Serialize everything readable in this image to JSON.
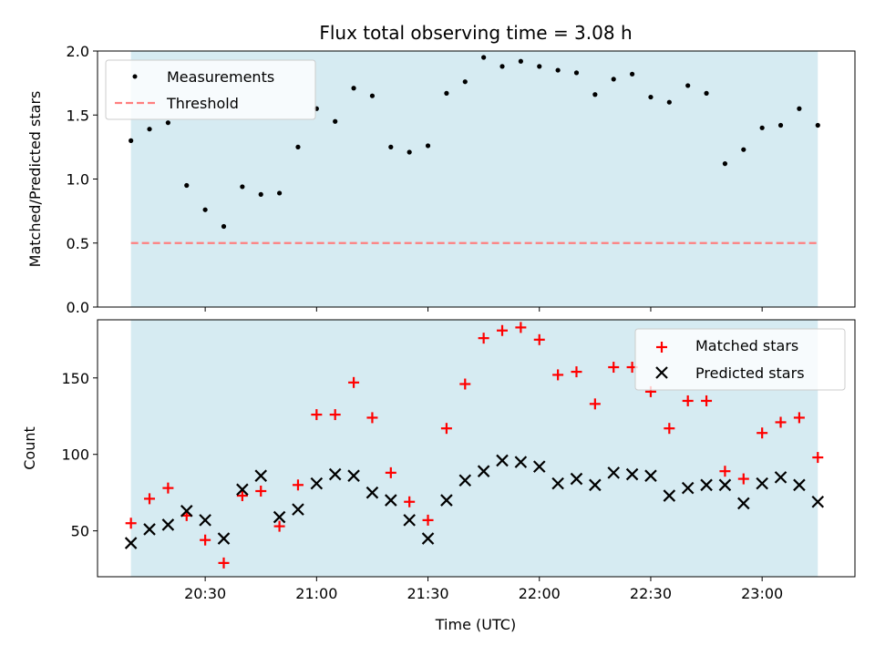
{
  "chart_data": {
    "title": "Flux total observing time = 3.08 h",
    "xlabel": "Time (UTC)",
    "x_tick_labels": [
      "20:30",
      "21:00",
      "21:30",
      "22:00",
      "22:30",
      "23:00"
    ],
    "x_tick_values": [
      "20:30",
      "21:00",
      "21:30",
      "22:00",
      "22:30",
      "23:00"
    ],
    "x_range": [
      "20:01",
      "23:25"
    ],
    "shaded_span": [
      "20:10",
      "23:15"
    ],
    "colors": {
      "shade": "#add8e6",
      "measure": "#000000",
      "threshold": "#ff7f7f",
      "matched": "#ff0000",
      "predicted": "#000000"
    },
    "times": [
      "20:10",
      "20:15",
      "20:20",
      "20:25",
      "20:30",
      "20:35",
      "20:40",
      "20:45",
      "20:50",
      "20:55",
      "21:00",
      "21:05",
      "21:10",
      "21:15",
      "21:20",
      "21:25",
      "21:30",
      "21:35",
      "21:40",
      "21:45",
      "21:50",
      "21:55",
      "22:00",
      "22:05",
      "22:10",
      "22:15",
      "22:20",
      "22:25",
      "22:30",
      "22:35",
      "22:40",
      "22:45",
      "22:50",
      "22:55",
      "23:00",
      "23:05",
      "23:10",
      "23:15"
    ],
    "panels": [
      {
        "type": "scatter",
        "ylabel": "Matched/Predicted stars",
        "ylim": [
          0,
          2.0
        ],
        "y_ticks": [
          "0.0",
          "0.5",
          "1.0",
          "1.5",
          "2.0"
        ],
        "grid": false,
        "legend_position": "upper-left",
        "series": [
          {
            "name": "Measurements",
            "marker": "dot",
            "values": [
              1.3,
              1.39,
              1.44,
              0.95,
              0.76,
              0.63,
              0.94,
              0.88,
              0.89,
              1.25,
              1.55,
              1.45,
              1.71,
              1.65,
              1.25,
              1.21,
              1.26,
              1.67,
              1.76,
              1.95,
              1.88,
              1.92,
              1.88,
              1.85,
              1.83,
              1.66,
              1.78,
              1.82,
              1.64,
              1.6,
              1.73,
              1.67,
              1.12,
              1.23,
              1.4,
              1.42,
              1.55,
              1.42
            ]
          },
          {
            "name": "Threshold",
            "marker": "dashed-line",
            "value": 0.5
          }
        ]
      },
      {
        "type": "scatter",
        "ylabel": "Count",
        "ylim": [
          20,
          188
        ],
        "y_ticks": [
          "50",
          "100",
          "150"
        ],
        "grid": false,
        "legend_position": "upper-right",
        "series": [
          {
            "name": "Matched stars",
            "marker": "plus",
            "values": [
              55,
              71,
              78,
              60,
              44,
              29,
              73,
              76,
              53,
              80,
              126,
              126,
              147,
              124,
              88,
              69,
              57,
              117,
              146,
              176,
              181,
              183,
              175,
              152,
              154,
              133,
              157,
              157,
              141,
              117,
              135,
              135,
              89,
              84,
              114,
              121,
              124,
              98
            ]
          },
          {
            "name": "Predicted stars",
            "marker": "x",
            "values": [
              42,
              51,
              54,
              63,
              57,
              45,
              77,
              86,
              59,
              64,
              81,
              87,
              86,
              75,
              70,
              57,
              45,
              70,
              83,
              89,
              96,
              95,
              92,
              81,
              84,
              80,
              88,
              87,
              86,
              73,
              78,
              80,
              80,
              68,
              81,
              85,
              80,
              69
            ]
          }
        ]
      }
    ]
  }
}
